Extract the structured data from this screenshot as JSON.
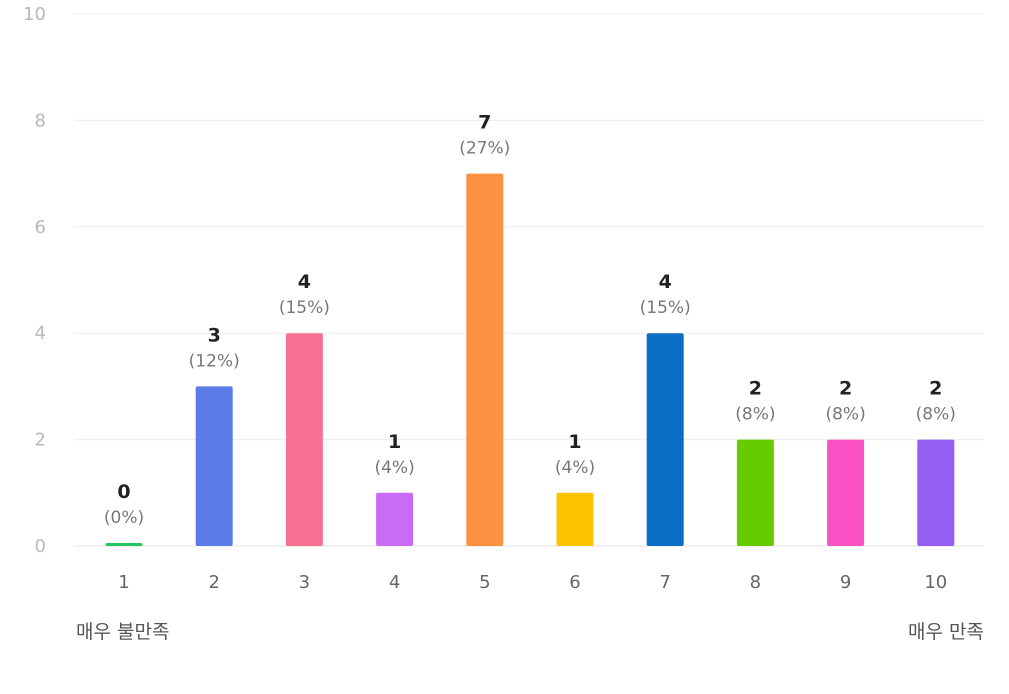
{
  "chart_data": {
    "type": "bar",
    "categories": [
      "1",
      "2",
      "3",
      "4",
      "5",
      "6",
      "7",
      "8",
      "9",
      "10"
    ],
    "values": [
      0,
      3,
      4,
      1,
      7,
      1,
      4,
      2,
      2,
      2
    ],
    "percent_labels": [
      "(0%)",
      "(12%)",
      "(15%)",
      "(4%)",
      "(27%)",
      "(4%)",
      "(15%)",
      "(8%)",
      "(8%)",
      "(8%)"
    ],
    "colors": [
      "#22c55e",
      "#5b7be8",
      "#f87193",
      "#c86cf6",
      "#fb9242",
      "#fcc400",
      "#0a6fc4",
      "#66cc00",
      "#fa50c3",
      "#945ef2"
    ],
    "ylim": [
      0,
      10
    ],
    "yticks": [
      0,
      2,
      4,
      6,
      8,
      10
    ],
    "grid": true,
    "title": "",
    "xlabel": "",
    "ylabel": ""
  },
  "scale_labels": {
    "min": "매우 불만족",
    "max": "매우 만족"
  }
}
